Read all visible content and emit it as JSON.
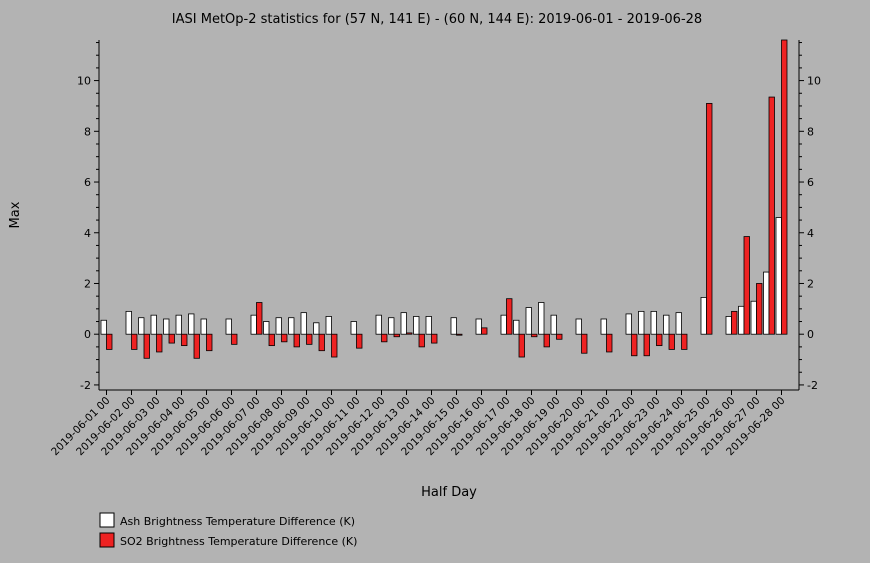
{
  "chart_data": {
    "type": "bar",
    "title": "IASI MetOp-2 statistics for (57 N, 141 E) - (60 N, 144 E): 2019-06-01 - 2019-06-28",
    "xlabel": "Half Day",
    "ylabel": "Max",
    "ylim": [
      -2.2,
      11.6
    ],
    "yticks": [
      -2,
      0,
      2,
      4,
      6,
      8,
      10
    ],
    "grid": false,
    "legend_position": "bottom-left",
    "categories": [
      "2019-06-01 00",
      "2019-06-01 12",
      "2019-06-02 00",
      "2019-06-02 12",
      "2019-06-03 00",
      "2019-06-03 12",
      "2019-06-04 00",
      "2019-06-04 12",
      "2019-06-05 00",
      "2019-06-05 12",
      "2019-06-06 00",
      "2019-06-06 12",
      "2019-06-07 00",
      "2019-06-07 12",
      "2019-06-08 00",
      "2019-06-08 12",
      "2019-06-09 00",
      "2019-06-09 12",
      "2019-06-10 00",
      "2019-06-10 12",
      "2019-06-11 00",
      "2019-06-11 12",
      "2019-06-12 00",
      "2019-06-12 12",
      "2019-06-13 00",
      "2019-06-13 12",
      "2019-06-14 00",
      "2019-06-14 12",
      "2019-06-15 00",
      "2019-06-15 12",
      "2019-06-16 00",
      "2019-06-16 12",
      "2019-06-17 00",
      "2019-06-17 12",
      "2019-06-18 00",
      "2019-06-18 12",
      "2019-06-19 00",
      "2019-06-19 12",
      "2019-06-20 00",
      "2019-06-20 12",
      "2019-06-21 00",
      "2019-06-21 12",
      "2019-06-22 00",
      "2019-06-22 12",
      "2019-06-23 00",
      "2019-06-23 12",
      "2019-06-24 00",
      "2019-06-24 12",
      "2019-06-25 00",
      "2019-06-25 12",
      "2019-06-26 00",
      "2019-06-26 12",
      "2019-06-27 00",
      "2019-06-27 12",
      "2019-06-28 00"
    ],
    "tick_labels": [
      "2019-06-01 00",
      "2019-06-02 00",
      "2019-06-03 00",
      "2019-06-04 00",
      "2019-06-05 00",
      "2019-06-06 00",
      "2019-06-07 00",
      "2019-06-08 00",
      "2019-06-09 00",
      "2019-06-10 00",
      "2019-06-11 00",
      "2019-06-12 00",
      "2019-06-13 00",
      "2019-06-14 00",
      "2019-06-15 00",
      "2019-06-16 00",
      "2019-06-17 00",
      "2019-06-18 00",
      "2019-06-19 00",
      "2019-06-20 00",
      "2019-06-21 00",
      "2019-06-22 00",
      "2019-06-23 00",
      "2019-06-24 00",
      "2019-06-25 00",
      "2019-06-26 00",
      "2019-06-27 00",
      "2019-06-28 00"
    ],
    "series": [
      {
        "name": "Ash Brightness Temperature Difference (K)",
        "color": "#ffffff",
        "values": [
          0.55,
          null,
          0.9,
          0.65,
          0.75,
          0.6,
          0.75,
          0.8,
          0.6,
          null,
          0.6,
          null,
          0.75,
          0.5,
          0.65,
          0.65,
          0.85,
          0.45,
          0.7,
          null,
          0.5,
          null,
          0.75,
          0.65,
          0.85,
          0.7,
          0.7,
          null,
          0.65,
          null,
          0.6,
          null,
          0.75,
          0.55,
          1.05,
          1.25,
          0.75,
          null,
          0.6,
          null,
          0.6,
          null,
          0.8,
          0.9,
          0.9,
          0.75,
          0.85,
          null,
          1.45,
          null,
          0.7,
          1.1,
          1.3,
          2.45,
          4.6
        ]
      },
      {
        "name": "SO2 Brightness Temperature Difference (K)",
        "color": "#ee2222",
        "values": [
          -0.6,
          null,
          -0.6,
          -0.95,
          -0.7,
          -0.35,
          -0.45,
          -0.95,
          -0.65,
          null,
          -0.4,
          null,
          1.25,
          -0.45,
          -0.3,
          -0.5,
          -0.4,
          -0.65,
          -0.9,
          null,
          -0.55,
          null,
          -0.3,
          -0.1,
          0.05,
          -0.5,
          -0.35,
          null,
          0.0,
          null,
          0.25,
          null,
          1.4,
          -0.9,
          -0.1,
          -0.5,
          -0.2,
          null,
          -0.75,
          null,
          -0.7,
          null,
          -0.85,
          -0.85,
          -0.45,
          -0.6,
          -0.6,
          null,
          9.1,
          null,
          0.9,
          3.85,
          2.0,
          9.35,
          11.6
        ]
      }
    ]
  }
}
